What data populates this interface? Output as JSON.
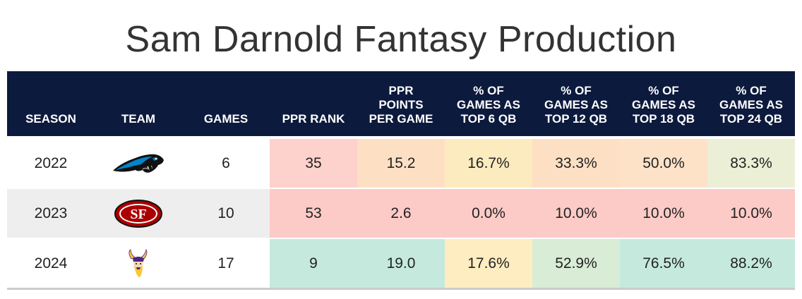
{
  "title": "Sam Darnold Fantasy Production",
  "chart_data": {
    "type": "table",
    "title": "Sam Darnold Fantasy Production",
    "columns": [
      "SEASON",
      "TEAM",
      "GAMES",
      "PPR RANK",
      "PPR\nPOINTS\nPER GAME",
      "% OF\nGAMES AS\nTOP 6 QB",
      "% OF\nGAMES AS\nTOP 12 QB",
      "% OF\nGAMES AS\nTOP 18 QB",
      "% OF\nGAMES AS\nTOP 24 QB"
    ],
    "rows": [
      {
        "season": "2022",
        "team_logo": "panthers-logo-icon",
        "games": "6",
        "ppr_rank": "35",
        "ppr_ppg": "15.2",
        "top6": "16.7%",
        "top12": "33.3%",
        "top18": "50.0%",
        "top24": "83.3%",
        "colors": {
          "ppr_rank": "#fdd1cc",
          "ppr_ppg": "#fde0c4",
          "top6": "#fdebc0",
          "top12": "#fde0c4",
          "top18": "#fde2c8",
          "top24": "#ebefd6"
        }
      },
      {
        "season": "2023",
        "team_logo": "49ers-logo-icon",
        "games": "10",
        "ppr_rank": "53",
        "ppr_ppg": "2.6",
        "top6": "0.0%",
        "top12": "10.0%",
        "top18": "10.0%",
        "top24": "10.0%",
        "colors": {
          "ppr_rank": "#fdcbc7",
          "ppr_ppg": "#fdcbc7",
          "top6": "#fdcbc7",
          "top12": "#fdcbc7",
          "top18": "#fdcbc7",
          "top24": "#fdcbc7"
        }
      },
      {
        "season": "2024",
        "team_logo": "vikings-logo-icon",
        "games": "17",
        "ppr_rank": "9",
        "ppr_ppg": "19.0",
        "top6": "17.6%",
        "top12": "52.9%",
        "top18": "76.5%",
        "top24": "88.2%",
        "colors": {
          "ppr_rank": "#c5e9dd",
          "ppr_ppg": "#c5e9dd",
          "top6": "#fdedc0",
          "top12": "#d8ecd6",
          "top18": "#c5e9dd",
          "top24": "#c5e9dd"
        }
      }
    ]
  },
  "colors": {
    "header_bg": "#0c1a3d",
    "row_bg_even": "#ffffff",
    "row_bg_odd": "#eeeeee"
  }
}
